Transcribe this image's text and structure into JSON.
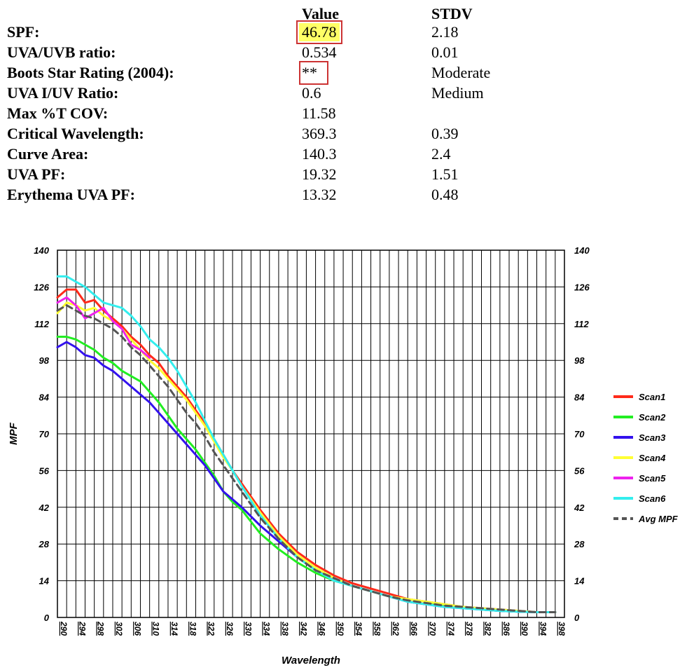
{
  "table": {
    "value_header": "Value",
    "stdv_header": "STDV",
    "rows": [
      {
        "label": "SPF:",
        "value": "46.78",
        "stdv": "2.18",
        "highlight": true,
        "boxed": true
      },
      {
        "label": "UVA/UVB ratio:",
        "value": "0.534",
        "stdv": "0.01"
      },
      {
        "label": "Boots Star Rating (2004):",
        "value": "**",
        "stdv": "Moderate",
        "boxed": true
      },
      {
        "label": "UVA I/UV Ratio:",
        "value": "0.6",
        "stdv": "Medium"
      },
      {
        "label": "Max %T COV:",
        "value": "11.58",
        "stdv": ""
      },
      {
        "label": "Critical Wavelength:",
        "value": "369.3",
        "stdv": "0.39"
      },
      {
        "label": "Curve Area:",
        "value": "140.3",
        "stdv": "2.4"
      },
      {
        "label": "UVA PF:",
        "value": "19.32",
        "stdv": "1.51"
      },
      {
        "label": "Erythema UVA PF:",
        "value": "13.32",
        "stdv": "0.48"
      }
    ]
  },
  "chart_data": {
    "type": "line",
    "xlabel": "Wavelength",
    "ylabel": "MPF",
    "xlim": [
      290,
      400
    ],
    "ylim": [
      0,
      140
    ],
    "yticks": [
      0,
      14,
      28,
      42,
      56,
      70,
      84,
      98,
      112,
      126,
      140
    ],
    "xticks": [
      290,
      294,
      298,
      302,
      306,
      310,
      314,
      318,
      322,
      326,
      330,
      334,
      338,
      342,
      346,
      350,
      354,
      358,
      362,
      366,
      370,
      374,
      378,
      382,
      386,
      390,
      394,
      398
    ],
    "grid": true,
    "legend_position": "right",
    "series": [
      {
        "name": "Scan1",
        "color": "#ff2a1a",
        "dash": false,
        "x": [
          290,
          292,
          294,
          296,
          298,
          300,
          302,
          304,
          306,
          308,
          310,
          312,
          314,
          316,
          318,
          320,
          322,
          324,
          326,
          328,
          330,
          334,
          338,
          342,
          346,
          350,
          354,
          358,
          362,
          366,
          370,
          374,
          378,
          382,
          386,
          390,
          394,
          398
        ],
        "y": [
          122,
          125,
          125,
          120,
          121,
          117,
          114,
          111,
          107,
          104,
          100,
          97,
          92,
          88,
          84,
          79,
          74,
          68,
          62,
          56,
          51,
          41,
          32,
          25,
          20,
          16,
          13,
          11,
          9,
          7,
          6,
          5,
          4,
          3.5,
          3,
          2.5,
          2,
          2
        ]
      },
      {
        "name": "Scan2",
        "color": "#22ee22",
        "dash": false,
        "x": [
          290,
          292,
          294,
          296,
          298,
          300,
          302,
          304,
          306,
          308,
          310,
          312,
          314,
          316,
          318,
          320,
          322,
          324,
          326,
          328,
          330,
          334,
          338,
          342,
          346,
          350,
          354,
          358,
          362,
          366,
          370,
          374,
          378,
          382,
          386,
          390,
          394,
          398
        ],
        "y": [
          107,
          107,
          106,
          104,
          102,
          99,
          97,
          94,
          92,
          90,
          86,
          82,
          77,
          72,
          68,
          64,
          59,
          54,
          48,
          44,
          41,
          32,
          26,
          21,
          17,
          14,
          12,
          10,
          8,
          6,
          5,
          4.5,
          4,
          3,
          2.5,
          2.2,
          2,
          2
        ]
      },
      {
        "name": "Scan3",
        "color": "#3311ee",
        "dash": false,
        "x": [
          290,
          292,
          294,
          296,
          298,
          300,
          302,
          304,
          306,
          308,
          310,
          312,
          314,
          316,
          318,
          320,
          322,
          324,
          326,
          328,
          330,
          334,
          338,
          342,
          346,
          350,
          354,
          358,
          362,
          366,
          370,
          374,
          378,
          382,
          386,
          390,
          394,
          398
        ],
        "y": [
          103,
          105,
          103,
          100,
          99,
          96,
          94,
          91,
          88,
          85,
          82,
          78,
          74,
          70,
          66,
          62,
          58,
          53,
          48,
          45,
          42,
          35,
          29,
          23,
          18,
          15,
          12,
          10,
          8,
          6,
          5,
          4,
          3.5,
          3,
          2.5,
          2.2,
          2,
          2
        ]
      },
      {
        "name": "Scan4",
        "color": "#ffff33",
        "dash": false,
        "x": [
          290,
          292,
          294,
          296,
          298,
          300,
          302,
          304,
          306,
          308,
          310,
          312,
          314,
          316,
          318,
          320,
          322,
          324,
          326,
          328,
          330,
          334,
          338,
          342,
          346,
          350,
          354,
          358,
          362,
          366,
          370,
          374,
          378,
          382,
          386,
          390,
          394,
          398
        ],
        "y": [
          116,
          120,
          119,
          117,
          118,
          115,
          113,
          110,
          106,
          102,
          98,
          95,
          91,
          87,
          83,
          78,
          73,
          67,
          61,
          56,
          50,
          40,
          31,
          24,
          19,
          15,
          12,
          10,
          8,
          7,
          6,
          5,
          4,
          3.5,
          3,
          2.5,
          2,
          2
        ]
      },
      {
        "name": "Scan5",
        "color": "#ee22ee",
        "dash": false,
        "x": [
          290,
          292,
          294,
          296,
          298,
          300,
          302,
          304,
          306,
          308,
          310
        ],
        "y": [
          120,
          122,
          119,
          114,
          116,
          118,
          113,
          110,
          104,
          102,
          99
        ]
      },
      {
        "name": "Scan6",
        "color": "#33eeee",
        "dash": false,
        "x": [
          290,
          292,
          294,
          296,
          298,
          300,
          302,
          304,
          306,
          308,
          310,
          312,
          314,
          316,
          318,
          320,
          322,
          324,
          326,
          328,
          330,
          334,
          338,
          342,
          346,
          350,
          354,
          358,
          362,
          366,
          370,
          374,
          378,
          382,
          386,
          390,
          394,
          398
        ],
        "y": [
          130,
          130,
          128,
          126,
          123,
          120,
          119,
          118,
          115,
          111,
          106,
          103,
          99,
          94,
          88,
          82,
          75,
          68,
          62,
          56,
          50,
          39,
          30,
          23,
          18,
          14,
          12,
          10,
          8,
          6,
          5,
          4,
          3.5,
          3,
          2.5,
          2.2,
          2,
          2
        ]
      },
      {
        "name": "Avg MPF",
        "color": "#555555",
        "dash": true,
        "x": [
          290,
          292,
          294,
          296,
          298,
          300,
          302,
          304,
          306,
          308,
          310,
          312,
          314,
          316,
          318,
          320,
          322,
          324,
          326,
          328,
          330,
          334,
          338,
          342,
          346,
          350,
          354,
          358,
          362,
          366,
          370,
          374,
          378,
          382,
          386,
          390,
          394,
          398
        ],
        "y": [
          117,
          119,
          117,
          115,
          114,
          112,
          110,
          107,
          103,
          100,
          96,
          92,
          88,
          83,
          78,
          74,
          69,
          63,
          58,
          53,
          48,
          38,
          30,
          23,
          18,
          15,
          12,
          10,
          8,
          6.5,
          5.5,
          4.5,
          4,
          3.5,
          3,
          2.5,
          2,
          2
        ]
      }
    ]
  }
}
